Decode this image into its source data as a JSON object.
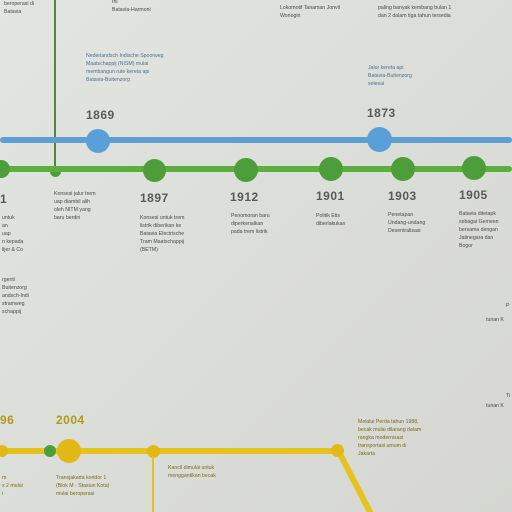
{
  "colors": {
    "blue_line": "#5d9fd0",
    "green_line": "#5cae3e",
    "gold_line": "#e6c21e",
    "blue_node": "#5aa0d8",
    "green_node": "#4d9e3a",
    "gold_node": "#e0b918"
  },
  "blue_timeline": {
    "years": [
      "1869",
      "1873"
    ],
    "texts": [
      "beroperasi di\nBatavia",
      "Ini\nBatavia-Harmoni",
      "Lokomotif Tanaman Jonvil\nWonogiri",
      "paling banyak kembang bulan 1\ndan 2 dalam tiga tahun tersedia",
      "Nederlandsch Indische Spoorweg\nMaatschappij (NISM) mulai\nmembangun rute kereta api\nBatavia-Buitenzorg",
      "Jalur kereta api\nBatavia-Buitenzorg\nselesai"
    ]
  },
  "green_timeline": {
    "years": [
      "1",
      "1897",
      "1912",
      "1901",
      "1903",
      "1905"
    ],
    "texts": [
      "untuk\nan\nuap\nn kepada\nlijer & Co",
      "Konsesi jalur trem\nuap diambil alih\noleh NITM yang\nbaru berdiri",
      "Konsesi untuk trem\nlistrik diberikan ke\nBatavia Electrische\nTram Maatschappij\n(BETM)",
      "Penomoran baru\ndiperkenalkan\npada trem listrik",
      "Politik Etis\ndiberlakukan",
      "Penetapan\nUndang-undang\nDesentralisasi",
      "Batavia ditetapk\nsebagai Gemeen\nbersama dengan\nJatinegara dan\nBogor",
      "rgenti\nBuitenzorg\nandsch-Indi\nstramweg\nschappij"
    ]
  },
  "gold_timeline": {
    "years": [
      "96",
      "2004"
    ],
    "texts": [
      "m\ns 2 mulai\ni",
      "Transjakarta koridor 1\n(Blok M - Stasiun Kota)\nmulai beroperasi",
      "Kancil dimulai untuk\nmenggantikan becak",
      "Melalui Perda tahun 1988,\nbecak mulai dilarang dalam\nrangka modernisasi\ntransportasi umum di\nJakarta"
    ]
  },
  "right_fragments": [
    "P",
    "tunan K",
    "Ti",
    "tunan K"
  ]
}
